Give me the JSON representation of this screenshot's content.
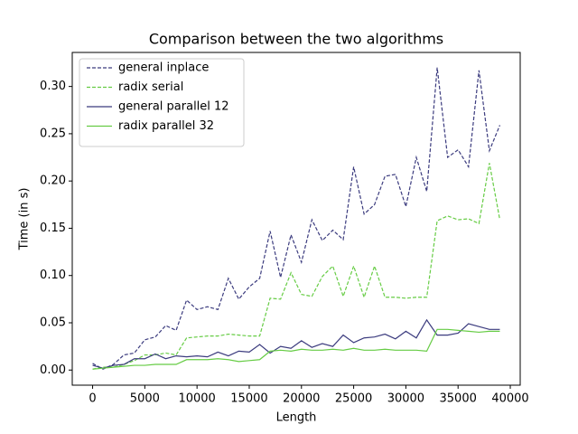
{
  "chart_data": {
    "type": "line",
    "title": "Comparison between the two algorithms",
    "xlabel": "Length",
    "ylabel": "Time (in s)",
    "x": [
      0,
      1000,
      2000,
      3000,
      4000,
      5000,
      6000,
      7000,
      8000,
      9000,
      10000,
      11000,
      12000,
      13000,
      14000,
      15000,
      16000,
      17000,
      18000,
      19000,
      20000,
      21000,
      22000,
      23000,
      24000,
      25000,
      26000,
      27000,
      28000,
      29000,
      30000,
      31000,
      32000,
      33000,
      34000,
      35000,
      36000,
      37000,
      38000,
      39000
    ],
    "series": [
      {
        "name": "general inplace",
        "color": "#3b3b7e",
        "linestyle": "dashed",
        "values": [
          0.007,
          0.001,
          0.006,
          0.016,
          0.018,
          0.032,
          0.035,
          0.047,
          0.042,
          0.074,
          0.064,
          0.067,
          0.064,
          0.097,
          0.075,
          0.088,
          0.097,
          0.147,
          0.098,
          0.143,
          0.114,
          0.159,
          0.137,
          0.148,
          0.138,
          0.215,
          0.165,
          0.175,
          0.205,
          0.207,
          0.173,
          0.225,
          0.189,
          0.32,
          0.225,
          0.233,
          0.215,
          0.317,
          0.232,
          0.259
        ]
      },
      {
        "name": "radix serial",
        "color": "#66cc44",
        "linestyle": "dashed",
        "values": [
          0.001,
          0.003,
          0.003,
          0.006,
          0.01,
          0.016,
          0.016,
          0.018,
          0.016,
          0.034,
          0.035,
          0.036,
          0.036,
          0.038,
          0.037,
          0.036,
          0.036,
          0.076,
          0.075,
          0.103,
          0.08,
          0.078,
          0.099,
          0.11,
          0.078,
          0.11,
          0.077,
          0.11,
          0.077,
          0.077,
          0.076,
          0.077,
          0.077,
          0.158,
          0.163,
          0.159,
          0.16,
          0.155,
          0.219,
          0.159
        ]
      },
      {
        "name": "general parallel 12",
        "color": "#3b3b7e",
        "linestyle": "solid",
        "values": [
          0.005,
          0.002,
          0.005,
          0.006,
          0.012,
          0.012,
          0.017,
          0.012,
          0.015,
          0.014,
          0.015,
          0.014,
          0.019,
          0.015,
          0.02,
          0.019,
          0.027,
          0.018,
          0.025,
          0.023,
          0.031,
          0.024,
          0.028,
          0.025,
          0.037,
          0.029,
          0.034,
          0.035,
          0.038,
          0.033,
          0.041,
          0.034,
          0.053,
          0.037,
          0.037,
          0.039,
          0.049,
          0.046,
          0.043,
          0.043
        ]
      },
      {
        "name": "radix parallel 32",
        "color": "#66cc44",
        "linestyle": "solid",
        "values": [
          0.001,
          0.002,
          0.003,
          0.004,
          0.005,
          0.005,
          0.006,
          0.006,
          0.006,
          0.011,
          0.011,
          0.011,
          0.012,
          0.011,
          0.009,
          0.01,
          0.011,
          0.02,
          0.021,
          0.02,
          0.022,
          0.021,
          0.021,
          0.022,
          0.021,
          0.023,
          0.021,
          0.021,
          0.022,
          0.021,
          0.021,
          0.021,
          0.02,
          0.043,
          0.043,
          0.042,
          0.041,
          0.04,
          0.041,
          0.041
        ]
      }
    ],
    "xlim": [
      -1950,
      40950
    ],
    "xticks": [
      0,
      5000,
      10000,
      15000,
      20000,
      25000,
      30000,
      35000,
      40000
    ],
    "ylim": [
      -0.016,
      0.336
    ],
    "yticks": [
      {
        "value": 0,
        "label": "0.00"
      },
      0.05,
      {
        "value": 0.1,
        "label": "0.10"
      },
      0.15,
      {
        "value": 0.2,
        "label": "0.20"
      },
      0.25,
      {
        "value": 0.3,
        "label": "0.30"
      }
    ],
    "legend": "upper left",
    "grid": false
  }
}
